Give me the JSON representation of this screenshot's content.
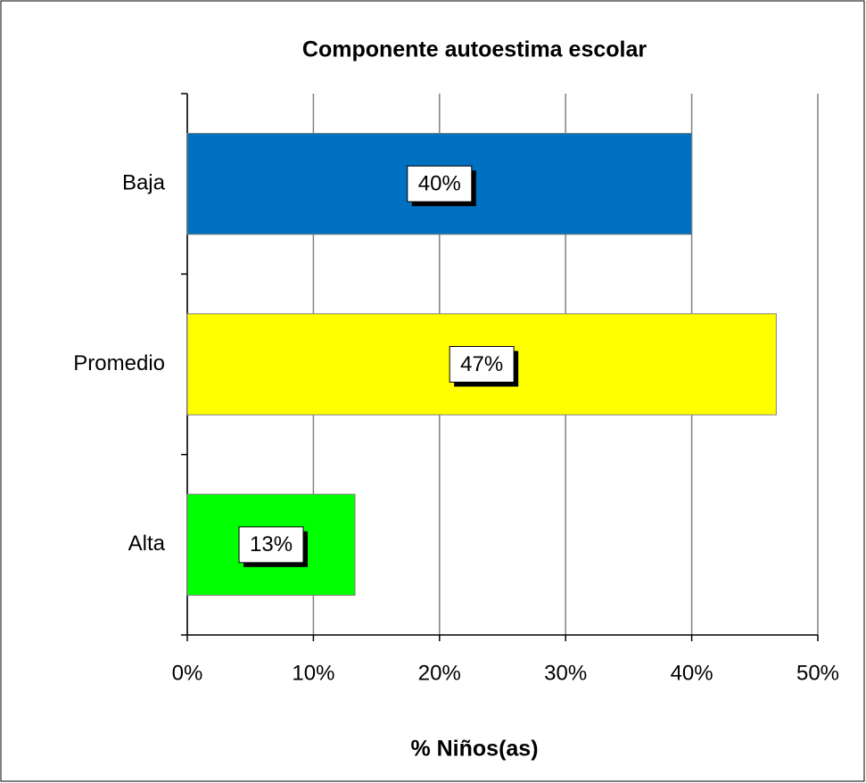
{
  "chart_data": {
    "type": "hbar",
    "title": "Componente autoestima escolar",
    "x_label": "% Niños(as)",
    "categories": [
      "Baja",
      "Promedio",
      "Alta"
    ],
    "values": [
      40,
      46.7,
      13.3
    ],
    "value_labels": [
      "40%",
      "47%",
      "13%"
    ],
    "colors": [
      "#0070c0",
      "#ffff00",
      "#00ff00"
    ],
    "xlim": [
      0,
      50
    ],
    "xticks": [
      {
        "value": 0,
        "label": "0%"
      },
      {
        "value": 10,
        "label": "10%"
      },
      {
        "value": 20,
        "label": "20%"
      },
      {
        "value": 30,
        "label": "30%"
      },
      {
        "value": 40,
        "label": "40%"
      },
      {
        "value": 50,
        "label": "50%"
      }
    ],
    "grid": true
  }
}
